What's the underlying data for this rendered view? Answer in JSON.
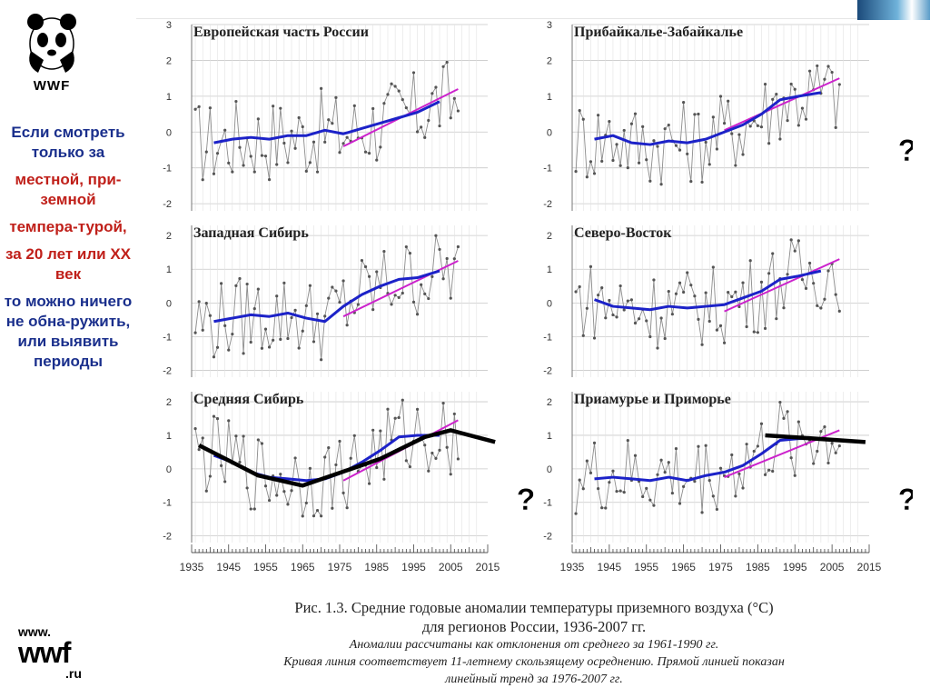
{
  "logo": {
    "word": "WWF",
    "url_top": "www.",
    "url_mid": "wwf",
    "url_bottom": ".ru"
  },
  "sidebar": {
    "line1": "Если смотреть только за",
    "line2": "местной, при-земной",
    "line3": "темпера-турой,",
    "line4": "за 20 лет или XX век",
    "line5": "то можно ничего не обна-ружить, или выявить периоды"
  },
  "caption": {
    "line1": "Рис. 1.3. Средние годовые аномалии температуры приземного воздуха (°С)",
    "line2": "для регионов России, 1936-2007 гг.",
    "line3": "Аномалии рассчитаны как отклонения от среднего за 1961-1990 гг.",
    "line4": "Кривая линия соответствует 11-летнему скользящему осреднению. Прямой линией показан",
    "line5": "линейный тренд за 1976-2007 гг."
  },
  "colors": {
    "raw": "#8c8c8c",
    "smooth": "#1c22c8",
    "trend": "#cc22cc",
    "overlay": "#000000",
    "grid": "#c8c8c8",
    "sidebar_blue": "#1a2f8c",
    "sidebar_red": "#c0201a"
  },
  "chart_data": [
    {
      "type": "line",
      "title": "Европейская часть России",
      "x_ticks": [
        1935,
        1945,
        1955,
        1965,
        1975,
        1985,
        1995,
        2005,
        2015
      ],
      "y_ticks": [
        -2,
        -1,
        0,
        1,
        2,
        3
      ],
      "ylim": [
        -2.2,
        3
      ],
      "trend": {
        "x": [
          1976,
          2007
        ],
        "y": [
          -0.4,
          1.2
        ]
      },
      "smooth": {
        "x": [
          1941,
          1946,
          1951,
          1956,
          1961,
          1966,
          1971,
          1976,
          1981,
          1986,
          1991,
          1996,
          2002
        ],
        "y": [
          -0.3,
          -0.2,
          -0.15,
          -0.2,
          -0.1,
          -0.1,
          0.05,
          -0.05,
          0.1,
          0.25,
          0.4,
          0.55,
          0.85
        ]
      },
      "annotations": []
    },
    {
      "type": "line",
      "title": "Прибайкалье-Забайкалье",
      "x_ticks": [
        1935,
        1945,
        1955,
        1965,
        1975,
        1985,
        1995,
        2005,
        2015
      ],
      "y_ticks": [
        -2,
        -1,
        0,
        1,
        2,
        3
      ],
      "ylim": [
        -2.2,
        3
      ],
      "trend": {
        "x": [
          1976,
          2007
        ],
        "y": [
          0.05,
          1.5
        ]
      },
      "smooth": {
        "x": [
          1941,
          1946,
          1951,
          1956,
          1961,
          1966,
          1971,
          1976,
          1981,
          1986,
          1991,
          1996,
          2002
        ],
        "y": [
          -0.2,
          -0.1,
          -0.3,
          -0.35,
          -0.25,
          -0.3,
          -0.2,
          0,
          0.2,
          0.5,
          0.9,
          1.0,
          1.1
        ]
      },
      "annotations": [
        "?"
      ]
    },
    {
      "type": "line",
      "title": "Западная Сибирь",
      "x_ticks": [
        1935,
        1945,
        1955,
        1965,
        1975,
        1985,
        1995,
        2005,
        2015
      ],
      "y_ticks": [
        -2,
        -1,
        0,
        1,
        2
      ],
      "ylim": [
        -2.2,
        2.3
      ],
      "trend": {
        "x": [
          1976,
          2007
        ],
        "y": [
          -0.4,
          1.25
        ]
      },
      "smooth": {
        "x": [
          1941,
          1946,
          1951,
          1956,
          1961,
          1966,
          1971,
          1976,
          1981,
          1986,
          1991,
          1996,
          2002
        ],
        "y": [
          -0.55,
          -0.45,
          -0.35,
          -0.4,
          -0.3,
          -0.45,
          -0.55,
          -0.1,
          0.25,
          0.5,
          0.7,
          0.75,
          0.95
        ]
      },
      "annotations": []
    },
    {
      "type": "line",
      "title": "Северо-Восток",
      "x_ticks": [
        1935,
        1945,
        1955,
        1965,
        1975,
        1985,
        1995,
        2005,
        2015
      ],
      "y_ticks": [
        -2,
        -1,
        0,
        1,
        2
      ],
      "ylim": [
        -2.2,
        2.3
      ],
      "trend": {
        "x": [
          1976,
          2007
        ],
        "y": [
          -0.25,
          1.3
        ]
      },
      "smooth": {
        "x": [
          1941,
          1946,
          1951,
          1956,
          1961,
          1966,
          1971,
          1976,
          1981,
          1986,
          1991,
          1996,
          2002
        ],
        "y": [
          0.1,
          -0.1,
          -0.15,
          -0.2,
          -0.1,
          -0.15,
          -0.1,
          -0.05,
          0.15,
          0.35,
          0.7,
          0.8,
          0.95
        ]
      },
      "annotations": []
    },
    {
      "type": "line",
      "title": "Средняя Сибирь",
      "x_ticks": [
        1935,
        1945,
        1955,
        1965,
        1975,
        1985,
        1995,
        2005,
        2015
      ],
      "y_ticks": [
        -2,
        -1,
        0,
        1,
        2
      ],
      "ylim": [
        -2.2,
        2.3
      ],
      "trend": {
        "x": [
          1976,
          2007
        ],
        "y": [
          -0.35,
          1.45
        ]
      },
      "smooth": {
        "x": [
          1941,
          1946,
          1951,
          1956,
          1961,
          1966,
          1971,
          1976,
          1981,
          1986,
          1991,
          1996,
          2002
        ],
        "y": [
          0.4,
          0.2,
          -0.1,
          -0.25,
          -0.3,
          -0.35,
          -0.3,
          -0.1,
          0.2,
          0.55,
          0.95,
          1.0,
          1.0
        ]
      },
      "overlay": {
        "x": [
          1937,
          1953,
          1965,
          1986,
          1998,
          2005,
          2017
        ],
        "y": [
          0.7,
          -0.2,
          -0.5,
          0.3,
          0.95,
          1.15,
          0.8
        ]
      },
      "annotations": [
        "?"
      ]
    },
    {
      "type": "line",
      "title": "Приамурье и Приморье",
      "x_ticks": [
        1935,
        1945,
        1955,
        1965,
        1975,
        1985,
        1995,
        2005,
        2015
      ],
      "y_ticks": [
        -2,
        -1,
        0,
        1,
        2
      ],
      "ylim": [
        -2.2,
        2.3
      ],
      "trend": {
        "x": [
          1976,
          2007
        ],
        "y": [
          -0.25,
          1.15
        ]
      },
      "smooth": {
        "x": [
          1941,
          1946,
          1951,
          1956,
          1961,
          1966,
          1971,
          1976,
          1981,
          1986,
          1991,
          1996,
          2002
        ],
        "y": [
          -0.3,
          -0.25,
          -0.3,
          -0.35,
          -0.25,
          -0.35,
          -0.2,
          -0.1,
          0.1,
          0.45,
          0.85,
          0.9,
          0.9
        ]
      },
      "overlay": {
        "x": [
          1987,
          2014
        ],
        "y": [
          1.0,
          0.8
        ]
      },
      "annotations": [
        "?"
      ]
    }
  ]
}
